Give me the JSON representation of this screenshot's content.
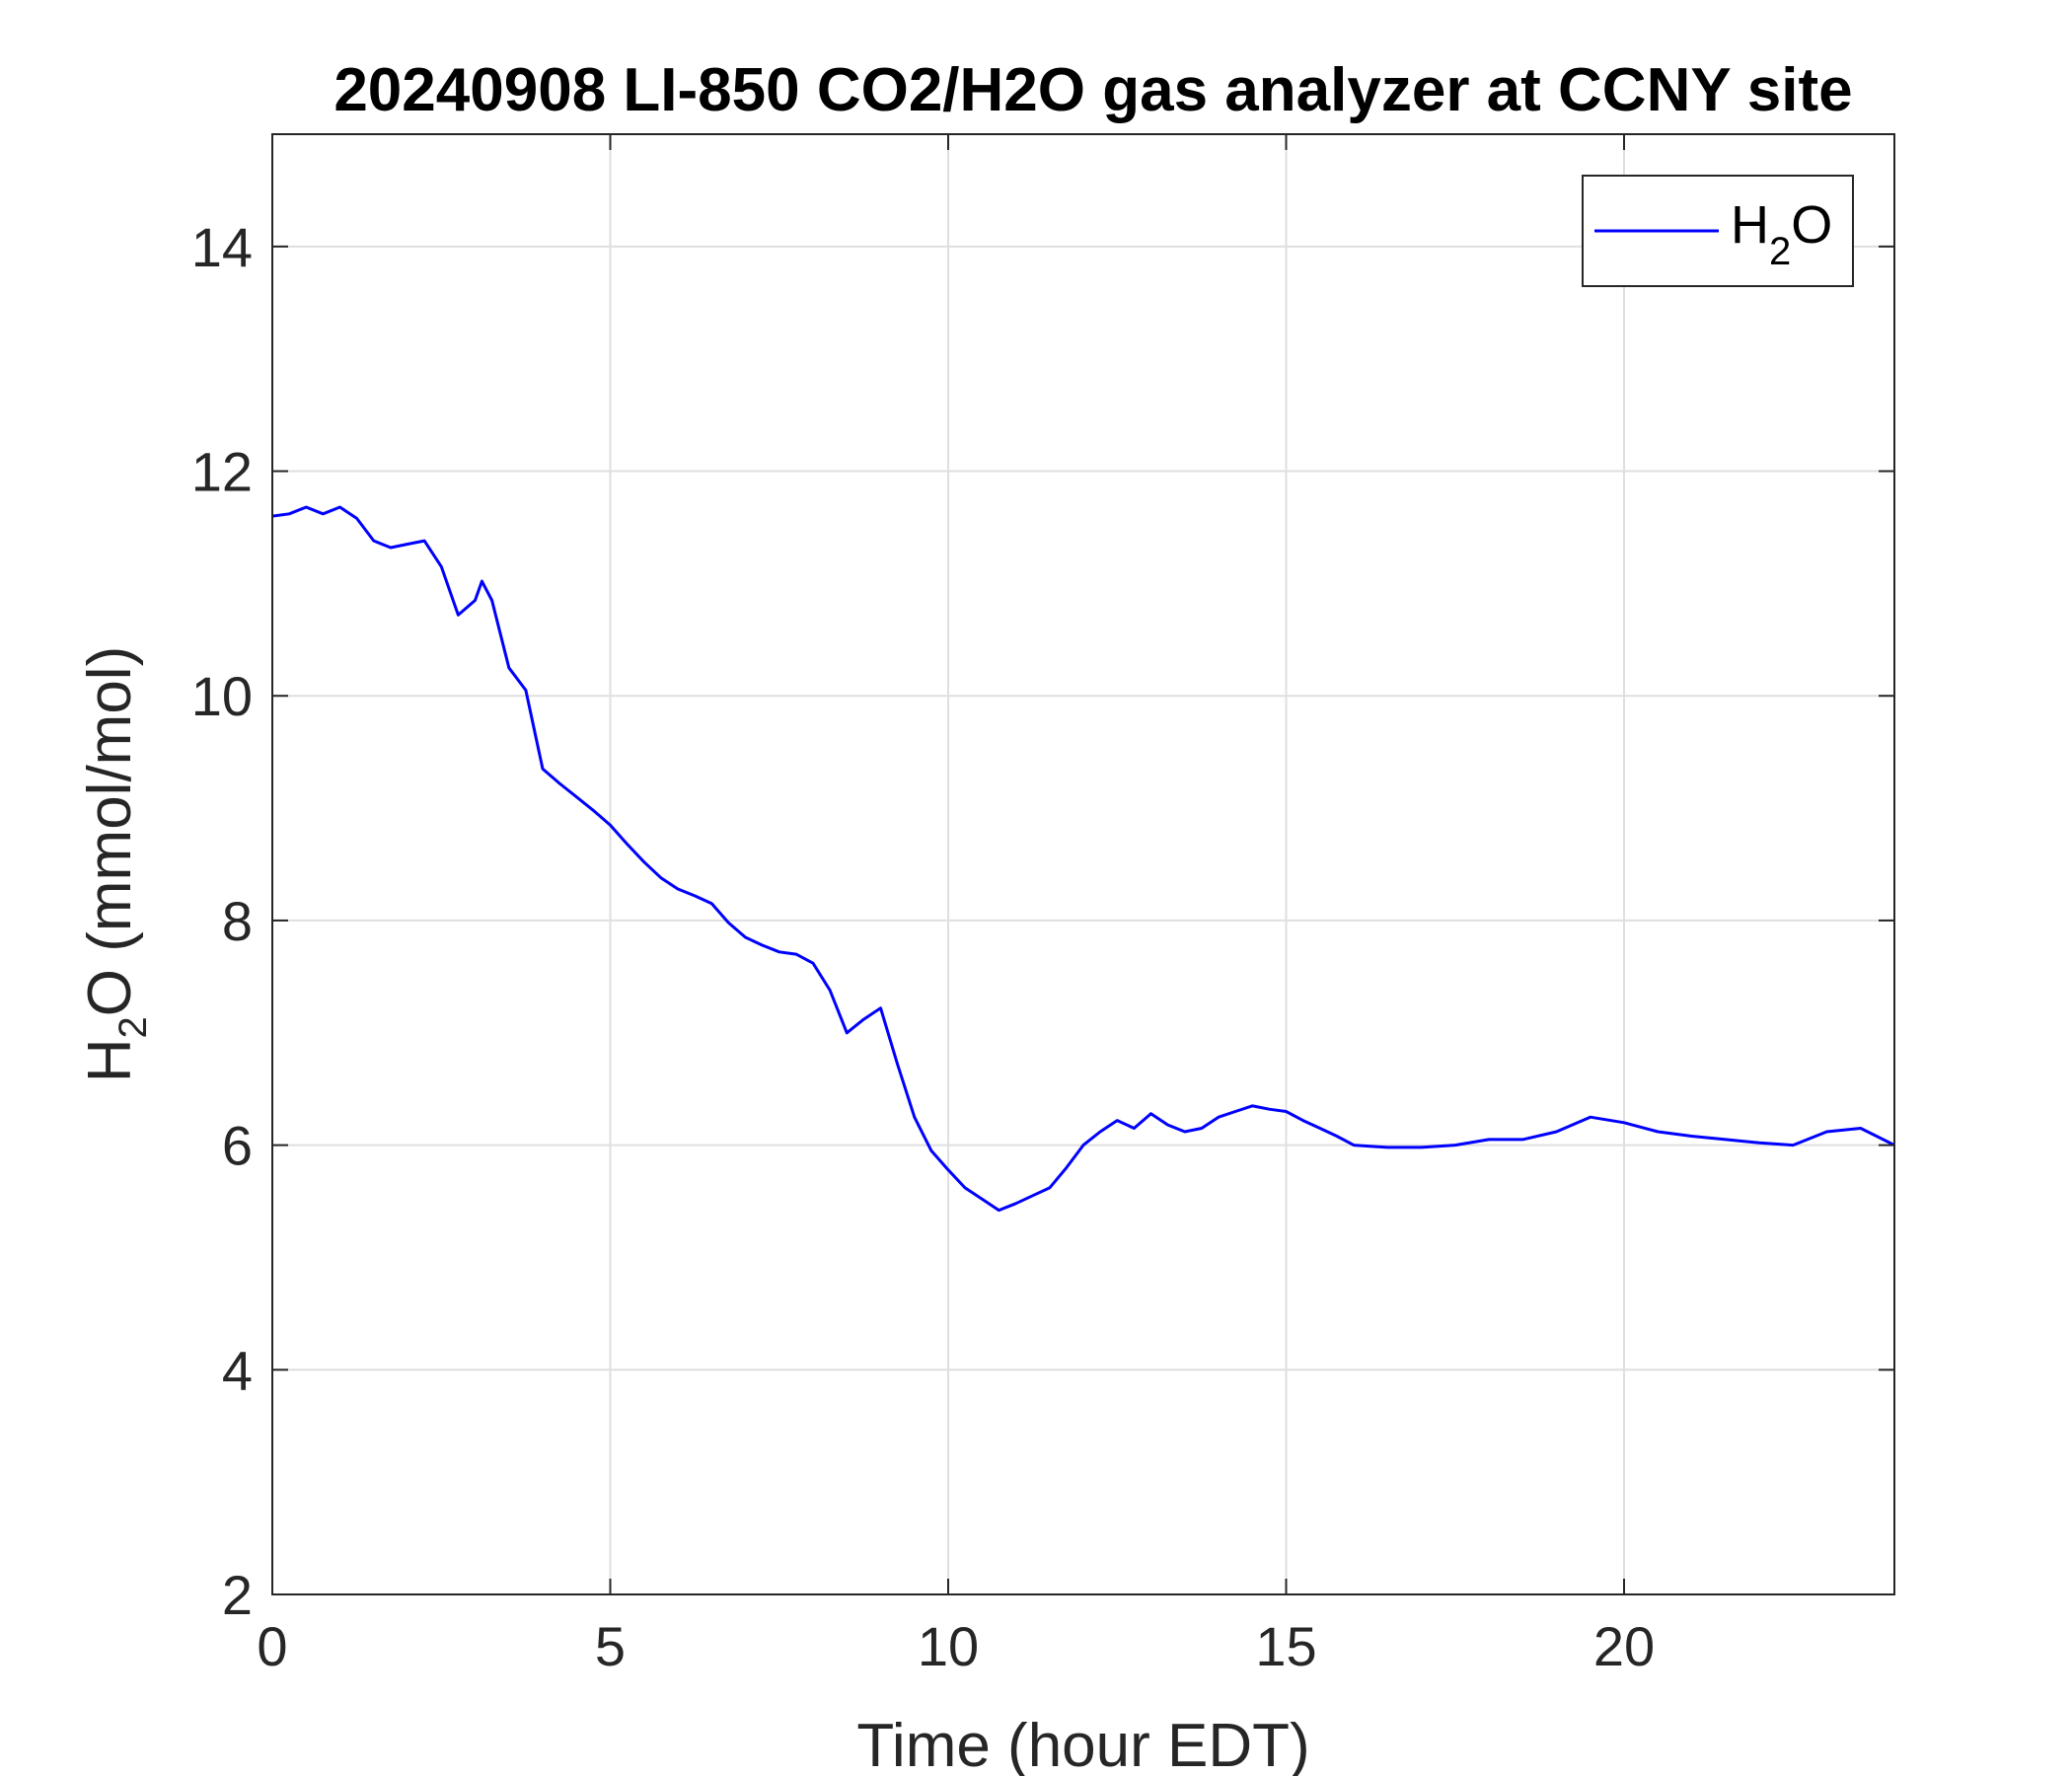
{
  "chart_data": {
    "type": "line",
    "title": "20240908 LI-850 CO2/H2O gas analyzer at CCNY site",
    "xlabel": "Time (hour EDT)",
    "ylabel": {
      "base": "H",
      "sub": "2",
      "rest": "O (mmol/mol)"
    },
    "xlim": [
      0,
      24
    ],
    "ylim": [
      2,
      15
    ],
    "xticks": [
      0,
      5,
      10,
      15,
      20
    ],
    "yticks": [
      2,
      4,
      6,
      8,
      10,
      12,
      14
    ],
    "grid": true,
    "legend_position": "top-right",
    "series": [
      {
        "name": {
          "base": "H",
          "sub": "2",
          "rest": "O"
        },
        "color": "#0000ff",
        "x": [
          0,
          0.25,
          0.5,
          0.75,
          1.0,
          1.25,
          1.5,
          1.75,
          2.0,
          2.25,
          2.5,
          2.75,
          3.0,
          3.1,
          3.25,
          3.5,
          3.75,
          4.0,
          4.25,
          4.5,
          4.75,
          5.0,
          5.25,
          5.5,
          5.75,
          6.0,
          6.25,
          6.5,
          6.75,
          7.0,
          7.25,
          7.5,
          7.75,
          8.0,
          8.25,
          8.5,
          8.75,
          9.0,
          9.25,
          9.5,
          9.75,
          10.0,
          10.25,
          10.5,
          10.75,
          11.0,
          11.25,
          11.5,
          11.75,
          12.0,
          12.25,
          12.5,
          12.75,
          13.0,
          13.25,
          13.5,
          13.75,
          14.0,
          14.25,
          14.5,
          14.75,
          15.0,
          15.25,
          15.5,
          15.75,
          16.0,
          16.5,
          17.0,
          17.5,
          18.0,
          18.5,
          19.0,
          19.5,
          20.0,
          20.5,
          21.0,
          21.5,
          22.0,
          22.5,
          23.0,
          23.5,
          24.0
        ],
        "y": [
          11.6,
          11.62,
          11.68,
          11.62,
          11.68,
          11.58,
          11.38,
          11.32,
          11.35,
          11.38,
          11.15,
          10.72,
          10.85,
          11.02,
          10.85,
          10.25,
          10.05,
          9.35,
          9.22,
          9.1,
          8.98,
          8.85,
          8.68,
          8.52,
          8.38,
          8.28,
          8.22,
          8.15,
          7.98,
          7.85,
          7.78,
          7.72,
          7.7,
          7.62,
          7.38,
          7.0,
          7.12,
          7.22,
          6.72,
          6.25,
          5.95,
          5.78,
          5.62,
          5.52,
          5.42,
          5.48,
          5.55,
          5.62,
          5.8,
          6.0,
          6.12,
          6.22,
          6.15,
          6.28,
          6.18,
          6.12,
          6.15,
          6.25,
          6.3,
          6.35,
          6.32,
          6.3,
          6.22,
          6.15,
          6.08,
          6.0,
          5.98,
          5.98,
          6.0,
          6.05,
          6.05,
          6.12,
          6.25,
          6.2,
          6.12,
          6.08,
          6.05,
          6.02,
          6.0,
          6.12,
          6.15,
          6.0
        ]
      }
    ]
  }
}
